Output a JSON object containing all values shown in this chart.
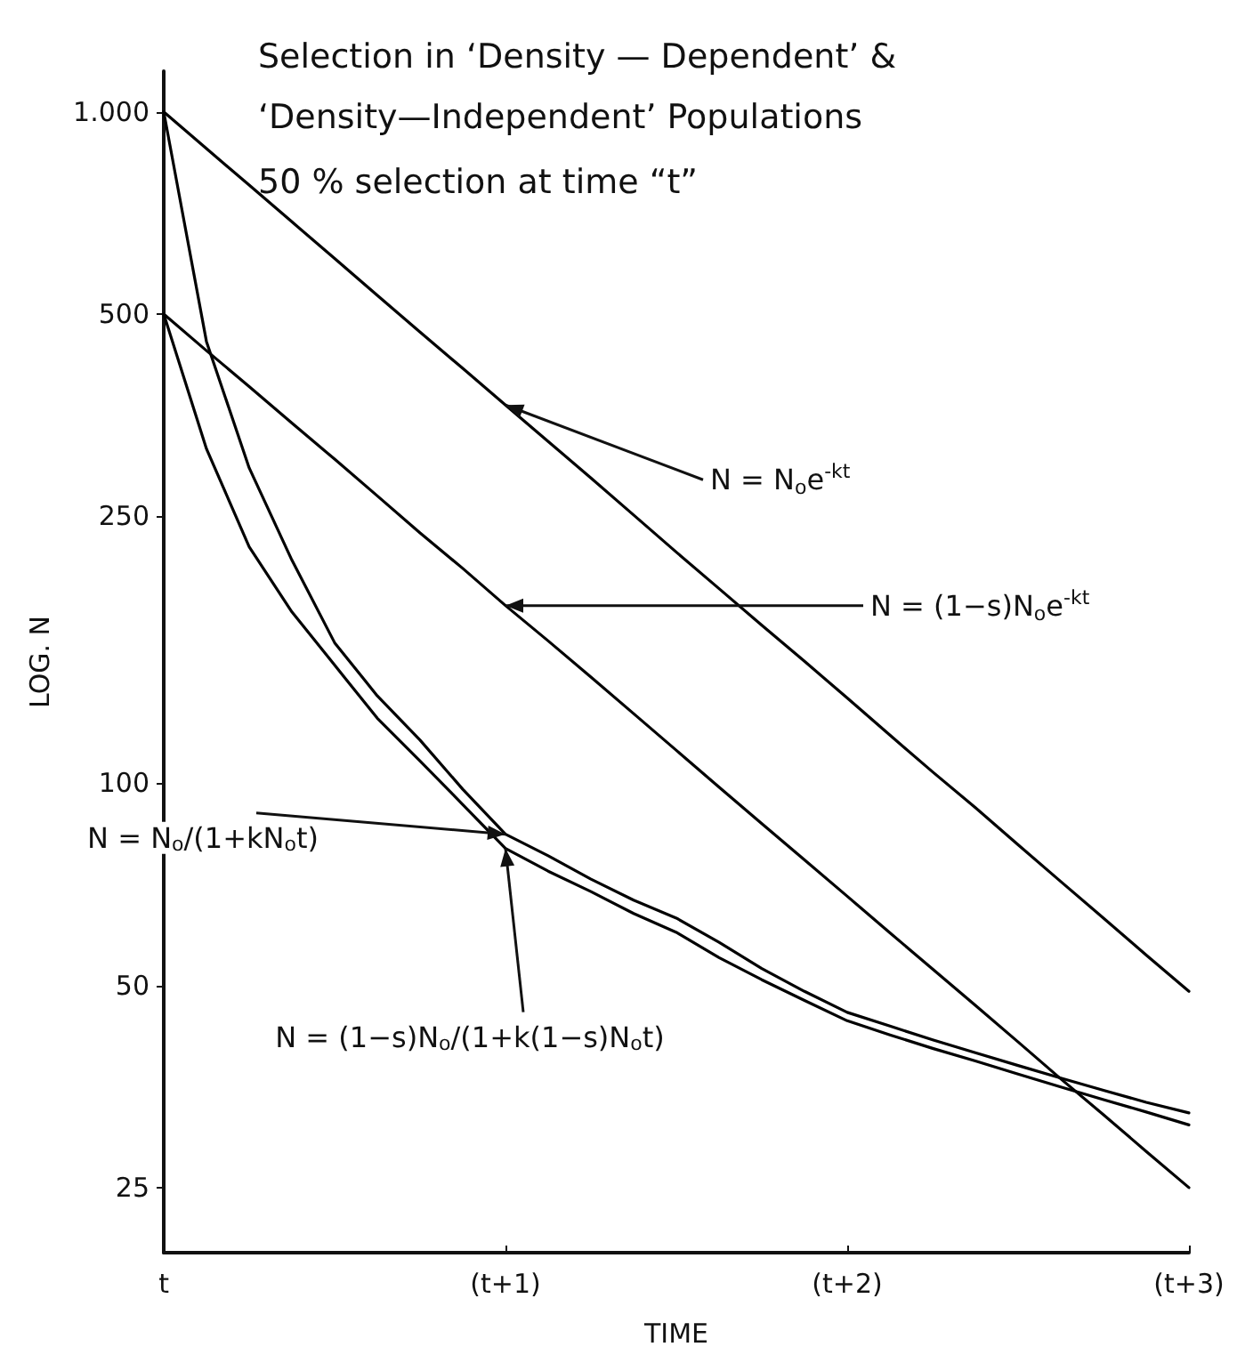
{
  "chart_data": {
    "type": "line",
    "title": "Selection in ‘Density — Dependent’ & ‘Density—Independent’ Populations",
    "subtitle": "50 % selection at time “t”",
    "xlabel": "TIME",
    "ylabel": "LOG. N",
    "categories": [
      "t",
      null,
      null,
      null,
      null,
      null,
      null,
      null,
      "(t+1)",
      null,
      null,
      null,
      null,
      null,
      null,
      null,
      "(t+2)",
      null,
      null,
      null,
      null,
      null,
      null,
      null,
      "(t+3)"
    ],
    "ylim": [
      20,
      1150
    ],
    "yticks": [
      25,
      50,
      100,
      250,
      500,
      {
        "value": 1000,
        "label": "1.000"
      }
    ],
    "log": "y",
    "grid": false,
    "marker": "none",
    "line_style": "solid",
    "series": [
      {
        "color": "#000000",
        "values": [
          1000,
          882,
          778,
          686,
          605,
          533,
          470,
          415,
          366,
          323,
          285,
          251,
          221,
          195,
          172,
          152,
          134,
          118,
          104,
          92,
          81,
          71.4,
          63,
          55.5,
          49
        ]
      },
      {
        "color": "#000000",
        "values": [
          500,
          441,
          390,
          344,
          304,
          268,
          236,
          209,
          184,
          163,
          144,
          127,
          112,
          98.7,
          87.1,
          76.9,
          67.9,
          59.9,
          52.9,
          46.7,
          41.2,
          36.3,
          32.1,
          28.3,
          25
        ]
      },
      {
        "color": "#000000",
        "values": [
          1000,
          455,
          295,
          215,
          162,
          135,
          116,
          98,
          84,
          78,
          72,
          67,
          63,
          58,
          53,
          49,
          45.6,
          43.5,
          41.5,
          39.7,
          38,
          36.4,
          34.9,
          33.5,
          32.3
        ]
      },
      {
        "color": "#000000",
        "values": [
          500,
          315,
          225,
          180,
          150,
          125,
          108,
          93,
          80,
          74,
          69,
          64,
          60,
          55,
          51,
          47.5,
          44.3,
          42.2,
          40.3,
          38.6,
          36.9,
          35.3,
          33.8,
          32.4,
          31
        ]
      }
    ],
    "annotations": [
      {
        "text": "N = N$_{o}$e$^{-kt}$",
        "x": "(t+1)",
        "y": 366
      },
      {
        "text": "N = (1−s)N$_{o}$e$^{-kt}$",
        "x": "(t+1)",
        "y": 184
      },
      {
        "text": "N = N$_{o}$/(1+kN$_{o}$t)",
        "x": "(t+1)",
        "y": 84
      },
      {
        "text": "N = (1−s)N$_{o}$/(1+k(1−s)N$_{o}$t)",
        "x": "(t+1)",
        "y": 80
      }
    ]
  }
}
